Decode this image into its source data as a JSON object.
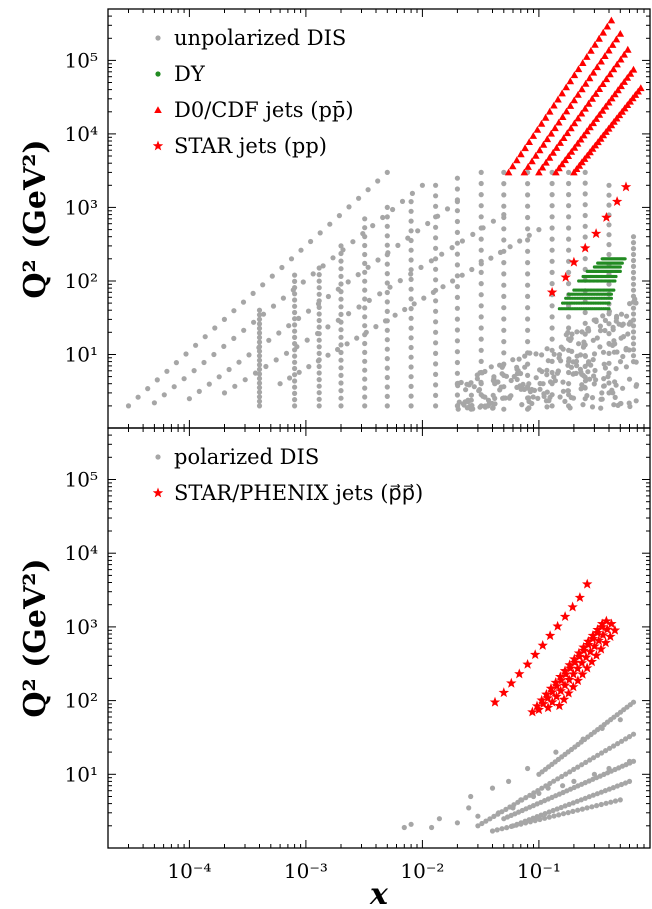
{
  "chart_data": [
    {
      "type": "scatter",
      "panel": "top",
      "xlabel": "",
      "ylabel": "Q² (GeV²)",
      "xscale": "log",
      "yscale": "log",
      "xlim": [
        2e-05,
        0.9
      ],
      "ylim": [
        1.0,
        500000
      ],
      "x_ticks": [
        {
          "label": "10⁻⁴",
          "value": 0.0001
        },
        {
          "label": "10⁻³",
          "value": 0.001
        },
        {
          "label": "10⁻²",
          "value": 0.01
        },
        {
          "label": "10⁻¹",
          "value": 0.1
        }
      ],
      "y_ticks": [
        {
          "label": "10¹",
          "value": 10
        },
        {
          "label": "10²",
          "value": 100
        },
        {
          "label": "10³",
          "value": 1000
        },
        {
          "label": "10⁴",
          "value": 10000
        },
        {
          "label": "10⁵",
          "value": 100000
        }
      ],
      "grid": false,
      "legend": "top-left",
      "series": [
        {
          "name": "unpolarized DIS",
          "marker": "circle",
          "color": "#a6a6a6",
          "bands": [
            {
              "xstart": 3e-05,
              "xend": 0.005,
              "q2start": 2.0,
              "q2end": 3000
            },
            {
              "xstart": 5e-05,
              "xend": 0.01,
              "q2start": 2.2,
              "q2end": 2000
            },
            {
              "xstart": 0.0001,
              "xend": 0.02,
              "q2start": 2.5,
              "q2end": 1200
            },
            {
              "xstart": 0.0002,
              "xend": 0.05,
              "q2start": 3.0,
              "q2end": 800
            },
            {
              "xstart": 0.0006,
              "xend": 0.1,
              "q2start": 4.0,
              "q2end": 500
            }
          ],
          "columns": [
            {
              "x": 0.0004,
              "q2min": 2.0,
              "q2max": 40
            },
            {
              "x": 0.0008,
              "q2min": 2.0,
              "q2max": 120
            },
            {
              "x": 0.0013,
              "q2min": 2.0,
              "q2max": 150
            },
            {
              "x": 0.002,
              "q2min": 2.0,
              "q2max": 300
            },
            {
              "x": 0.0032,
              "q2min": 2.0,
              "q2max": 700
            },
            {
              "x": 0.005,
              "q2min": 2.0,
              "q2max": 1000
            },
            {
              "x": 0.008,
              "q2min": 2.0,
              "q2max": 1200
            },
            {
              "x": 0.013,
              "q2min": 2.0,
              "q2max": 2000
            },
            {
              "x": 0.02,
              "q2min": 2.0,
              "q2max": 2500
            },
            {
              "x": 0.032,
              "q2min": 2.0,
              "q2max": 3000
            },
            {
              "x": 0.05,
              "q2min": 1.8,
              "q2max": 3000
            },
            {
              "x": 0.08,
              "q2min": 1.8,
              "q2max": 3000
            },
            {
              "x": 0.13,
              "q2min": 2.0,
              "q2max": 3000
            },
            {
              "x": 0.18,
              "q2min": 2.0,
              "q2max": 3000
            },
            {
              "x": 0.25,
              "q2min": 2.5,
              "q2max": 3000
            },
            {
              "x": 0.4,
              "q2min": 3.0,
              "q2max": 2000
            },
            {
              "x": 0.65,
              "q2min": 8.0,
              "q2max": 400
            }
          ],
          "lowq_cluster": {
            "xmin": 0.02,
            "xmax": 0.7,
            "q2min": 1.8,
            "q2max": 60
          }
        },
        {
          "name": "DY",
          "marker": "circle",
          "color": "#228b22",
          "rows": [
            {
              "q2": 42,
              "xmin": 0.15,
              "xmax": 0.4
            },
            {
              "q2": 50,
              "xmin": 0.16,
              "xmax": 0.4
            },
            {
              "q2": 58,
              "xmin": 0.17,
              "xmax": 0.42
            },
            {
              "q2": 66,
              "xmin": 0.18,
              "xmax": 0.42
            },
            {
              "q2": 75,
              "xmin": 0.2,
              "xmax": 0.44
            },
            {
              "q2": 100,
              "xmin": 0.22,
              "xmax": 0.45
            },
            {
              "q2": 115,
              "xmin": 0.24,
              "xmax": 0.46
            },
            {
              "q2": 135,
              "xmin": 0.26,
              "xmax": 0.5
            },
            {
              "q2": 155,
              "xmin": 0.3,
              "xmax": 0.5
            },
            {
              "q2": 175,
              "xmin": 0.32,
              "xmax": 0.52
            },
            {
              "q2": 200,
              "xmin": 0.35,
              "xmax": 0.55
            }
          ]
        },
        {
          "name": "D0/CDF jets (pp̄)",
          "marker": "triangle",
          "color": "#ff0000",
          "lines": [
            {
              "x1": 0.055,
              "q21": 3000,
              "x2": 0.42,
              "q22": 350000
            },
            {
              "x1": 0.075,
              "q21": 3000,
              "x2": 0.5,
              "q22": 230000
            },
            {
              "x1": 0.1,
              "q21": 3000,
              "x2": 0.58,
              "q22": 140000
            },
            {
              "x1": 0.14,
              "q21": 3000,
              "x2": 0.65,
              "q22": 75000
            },
            {
              "x1": 0.2,
              "q21": 3000,
              "x2": 0.75,
              "q22": 42000
            }
          ]
        },
        {
          "name": "STAR jets (pp)",
          "marker": "star",
          "color": "#ff0000",
          "x": [
            0.13,
            0.17,
            0.2,
            0.25,
            0.31,
            0.38,
            0.47,
            0.56
          ],
          "y": [
            70,
            112,
            180,
            280,
            440,
            730,
            1200,
            1900
          ]
        }
      ]
    },
    {
      "type": "scatter",
      "panel": "bottom",
      "xlabel": "x",
      "ylabel": "Q² (GeV²)",
      "xscale": "log",
      "yscale": "log",
      "xlim": [
        2e-05,
        0.9
      ],
      "ylim": [
        1.0,
        500000
      ],
      "x_ticks": [
        {
          "label": "10⁻⁴",
          "value": 0.0001
        },
        {
          "label": "10⁻³",
          "value": 0.001
        },
        {
          "label": "10⁻²",
          "value": 0.01
        },
        {
          "label": "10⁻¹",
          "value": 0.1
        }
      ],
      "y_ticks": [
        {
          "label": "10¹",
          "value": 10
        },
        {
          "label": "10²",
          "value": 100
        },
        {
          "label": "10³",
          "value": 1000
        },
        {
          "label": "10⁴",
          "value": 10000
        },
        {
          "label": "10⁵",
          "value": 100000
        }
      ],
      "grid": false,
      "legend": "top-left",
      "series": [
        {
          "name": "polarized DIS",
          "marker": "circle",
          "color": "#a6a6a6",
          "x": [
            0.007,
            0.008,
            0.012,
            0.014,
            0.02,
            0.025,
            0.026,
            0.03,
            0.04,
            0.045,
            0.055,
            0.06,
            0.07,
            0.08,
            0.09,
            0.1,
            0.12,
            0.14,
            0.16,
            0.2,
            0.24,
            0.3,
            0.35,
            0.4,
            0.5,
            0.6
          ],
          "y": [
            1.9,
            2.1,
            1.9,
            2.5,
            2.2,
            3.5,
            5.0,
            2.7,
            6.5,
            3.0,
            8.0,
            3.5,
            4.5,
            12,
            5.0,
            5.5,
            6.5,
            20,
            7.0,
            8.0,
            30,
            10,
            42,
            12,
            55,
            15
          ],
          "bands": [
            {
              "xstart": 0.03,
              "xend": 0.65,
              "q2start": 2.0,
              "q2end": 35,
              "n": 40
            },
            {
              "xstart": 0.05,
              "xend": 0.65,
              "q2start": 2.5,
              "q2end": 15,
              "n": 36
            },
            {
              "xstart": 0.06,
              "xend": 0.6,
              "q2start": 2.0,
              "q2end": 8,
              "n": 30
            },
            {
              "xstart": 0.04,
              "xend": 0.5,
              "q2start": 1.7,
              "q2end": 4.5,
              "n": 28
            },
            {
              "xstart": 0.1,
              "xend": 0.65,
              "q2start": 10,
              "q2end": 95,
              "n": 30
            }
          ]
        },
        {
          "name": "STAR/PHENIX jets (p⃗p⃗)",
          "marker": "star",
          "color": "#ff0000",
          "x": [
            0.042,
            0.05,
            0.058,
            0.068,
            0.08,
            0.093,
            0.108,
            0.125,
            0.145,
            0.168,
            0.195,
            0.225,
            0.26
          ],
          "y": [
            95,
            128,
            172,
            230,
            310,
            420,
            560,
            760,
            1020,
            1380,
            1860,
            2500,
            3800
          ],
          "bands": [
            {
              "xstart": 0.088,
              "xend": 0.35,
              "q2start": 70,
              "q2end": 1100,
              "n": 16
            },
            {
              "xstart": 0.1,
              "xend": 0.38,
              "q2start": 75,
              "q2end": 1200,
              "n": 16
            },
            {
              "xstart": 0.12,
              "xend": 0.42,
              "q2start": 80,
              "q2end": 1100,
              "n": 16
            },
            {
              "xstart": 0.15,
              "xend": 0.45,
              "q2start": 85,
              "q2end": 900,
              "n": 13
            }
          ]
        }
      ]
    }
  ]
}
